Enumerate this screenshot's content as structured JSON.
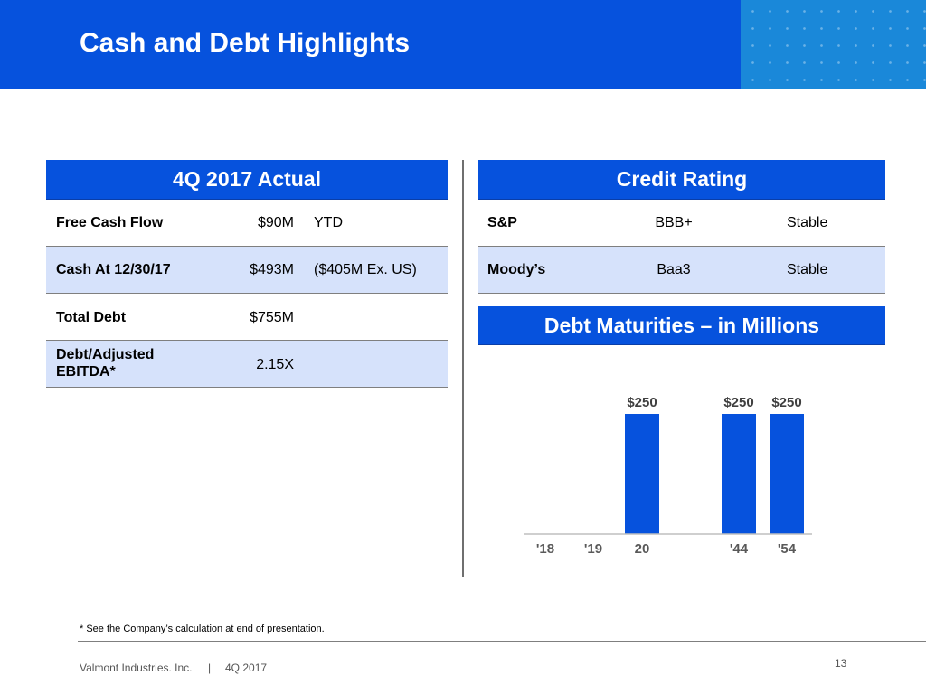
{
  "header": {
    "title": "Cash and Debt Highlights"
  },
  "actual": {
    "heading": "4Q 2017 Actual",
    "rows": [
      {
        "label": "Free Cash Flow",
        "value": "$90M",
        "note": "YTD"
      },
      {
        "label": "Cash At 12/30/17",
        "value": "$493M",
        "note": "($405M Ex. US)"
      },
      {
        "label": "Total Debt",
        "value": "$755M",
        "note": ""
      },
      {
        "label": "Debt/Adjusted EBITDA*",
        "value": "2.15X",
        "note": ""
      }
    ]
  },
  "credit": {
    "heading": "Credit Rating",
    "rows": [
      {
        "agency": "S&P",
        "rating": "BBB+",
        "outlook": "Stable"
      },
      {
        "agency": "Moody’s",
        "rating": "Baa3",
        "outlook": "Stable"
      }
    ]
  },
  "maturities": {
    "heading": "Debt Maturities – in Millions"
  },
  "chart_data": {
    "type": "bar",
    "title": "",
    "categories": [
      "'18",
      "'19",
      "20",
      "'44",
      "'54"
    ],
    "values": [
      0,
      0,
      250,
      250,
      250
    ],
    "data_labels": [
      "",
      "",
      "$250",
      "$250",
      "$250"
    ],
    "bar_color": "#0652dd",
    "xlabel": "",
    "ylabel": "",
    "grid": false
  },
  "footnote": "* See the Company’s calculation at end of presentation.",
  "footer": {
    "company": "Valmont Industries. Inc.",
    "separator": "|",
    "period": "4Q 2017",
    "page": "13"
  },
  "colors": {
    "brand_blue": "#0652dd",
    "row_shade": "#d6e2fb",
    "dots_panel": "#1a88d9"
  }
}
